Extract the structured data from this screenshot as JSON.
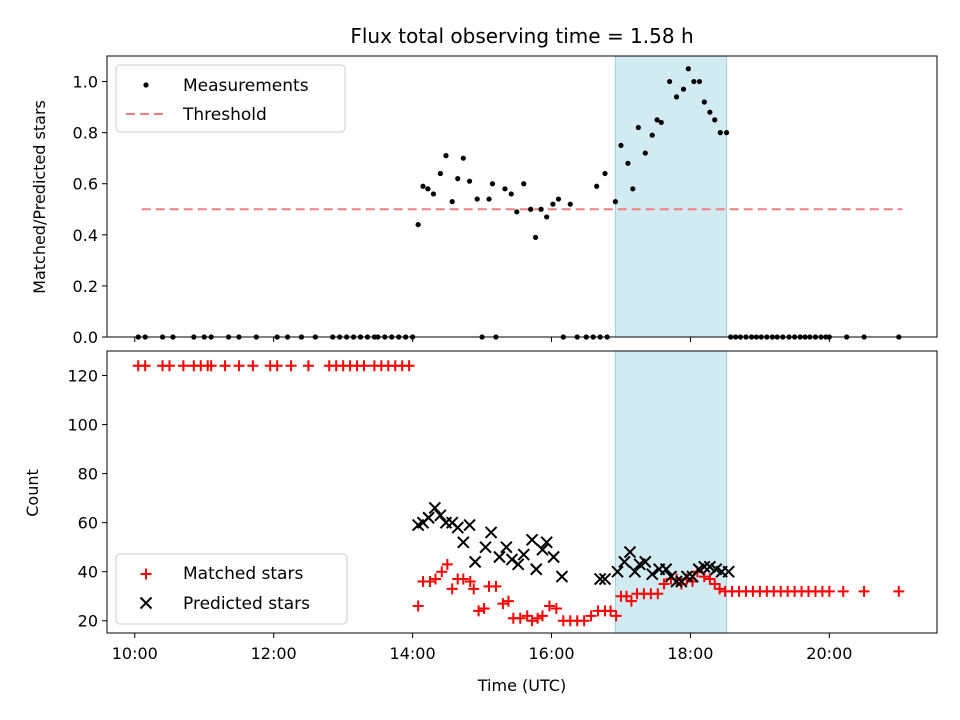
{
  "chart_data": {
    "type": "scatter",
    "title": "Flux total observing time = 1.58 h",
    "xlabel": "Time (UTC)",
    "x_ticks": [
      "10:00",
      "12:00",
      "14:00",
      "16:00",
      "18:00",
      "20:00"
    ],
    "xlim_hours": [
      9.6,
      21.55
    ],
    "highlight_span_hours": [
      16.92,
      18.52
    ],
    "highlight_color": "#add8e6",
    "panels": [
      {
        "name": "ratio",
        "ylabel": "Matched/Predicted stars",
        "ylim": [
          0,
          1.1
        ],
        "yticks": [
          "0.0",
          "0.2",
          "0.4",
          "0.6",
          "0.8",
          "1.0"
        ],
        "legend": [
          "Measurements",
          "Threshold"
        ],
        "threshold": {
          "value": 0.5,
          "x_range_hours": [
            10.1,
            21.05
          ],
          "color": "#f08080"
        },
        "measurements": [
          [
            10.05,
            0
          ],
          [
            10.15,
            0
          ],
          [
            10.4,
            0
          ],
          [
            10.55,
            0
          ],
          [
            10.85,
            0
          ],
          [
            11.0,
            0
          ],
          [
            11.1,
            0
          ],
          [
            11.35,
            0
          ],
          [
            11.5,
            0
          ],
          [
            11.75,
            0
          ],
          [
            12.05,
            0
          ],
          [
            12.2,
            0
          ],
          [
            12.4,
            0
          ],
          [
            12.6,
            0
          ],
          [
            12.85,
            0
          ],
          [
            12.95,
            0
          ],
          [
            13.05,
            0
          ],
          [
            13.15,
            0
          ],
          [
            13.25,
            0
          ],
          [
            13.35,
            0
          ],
          [
            13.45,
            0
          ],
          [
            13.5,
            0
          ],
          [
            13.6,
            0
          ],
          [
            13.7,
            0
          ],
          [
            13.8,
            0
          ],
          [
            13.9,
            0
          ],
          [
            14.0,
            0
          ],
          [
            14.08,
            0.44
          ],
          [
            14.15,
            0.59
          ],
          [
            14.22,
            0.58
          ],
          [
            14.3,
            0.56
          ],
          [
            14.4,
            0.64
          ],
          [
            14.48,
            0.71
          ],
          [
            14.57,
            0.53
          ],
          [
            14.65,
            0.62
          ],
          [
            14.73,
            0.7
          ],
          [
            14.82,
            0.61
          ],
          [
            14.93,
            0.54
          ],
          [
            15.1,
            0.54
          ],
          [
            15.15,
            0.6
          ],
          [
            15.33,
            0.58
          ],
          [
            15.42,
            0.56
          ],
          [
            15.5,
            0.49
          ],
          [
            15.6,
            0.6
          ],
          [
            15.7,
            0.5
          ],
          [
            15.77,
            0.39
          ],
          [
            15.85,
            0.5
          ],
          [
            15.93,
            0.47
          ],
          [
            16.02,
            0.52
          ],
          [
            16.1,
            0.54
          ],
          [
            16.27,
            0.52
          ],
          [
            16.65,
            0.59
          ],
          [
            16.77,
            0.64
          ],
          [
            16.92,
            0.53
          ],
          [
            17.0,
            0.75
          ],
          [
            17.1,
            0.68
          ],
          [
            17.17,
            0.58
          ],
          [
            17.25,
            0.82
          ],
          [
            17.35,
            0.72
          ],
          [
            17.45,
            0.79
          ],
          [
            17.52,
            0.85
          ],
          [
            17.58,
            0.84
          ],
          [
            17.7,
            1.0
          ],
          [
            17.8,
            0.94
          ],
          [
            17.9,
            0.97
          ],
          [
            17.97,
            1.05
          ],
          [
            18.05,
            1.0
          ],
          [
            18.13,
            1.0
          ],
          [
            18.2,
            0.92
          ],
          [
            18.28,
            0.88
          ],
          [
            18.35,
            0.85
          ],
          [
            18.43,
            0.8
          ],
          [
            18.52,
            0.8
          ],
          [
            15.0,
            0
          ],
          [
            15.2,
            0
          ],
          [
            16.17,
            0
          ],
          [
            16.37,
            0
          ],
          [
            16.5,
            0
          ],
          [
            16.6,
            0
          ],
          [
            16.7,
            0
          ],
          [
            16.8,
            0
          ],
          [
            18.58,
            0
          ],
          [
            18.65,
            0
          ],
          [
            18.72,
            0
          ],
          [
            18.8,
            0
          ],
          [
            18.88,
            0
          ],
          [
            18.95,
            0
          ],
          [
            19.02,
            0
          ],
          [
            19.1,
            0
          ],
          [
            19.18,
            0
          ],
          [
            19.25,
            0
          ],
          [
            19.33,
            0
          ],
          [
            19.42,
            0
          ],
          [
            19.5,
            0
          ],
          [
            19.58,
            0
          ],
          [
            19.65,
            0
          ],
          [
            19.72,
            0
          ],
          [
            19.8,
            0
          ],
          [
            19.88,
            0
          ],
          [
            19.95,
            0
          ],
          [
            20.0,
            0
          ],
          [
            20.25,
            0
          ],
          [
            20.5,
            0
          ],
          [
            21.0,
            0
          ]
        ]
      },
      {
        "name": "count",
        "ylabel": "Count",
        "ylim": [
          15,
          130
        ],
        "yticks": [
          "20",
          "40",
          "60",
          "80",
          "100",
          "120"
        ],
        "legend": [
          "Matched stars",
          "Predicted stars"
        ],
        "matched_color": "#ff0000",
        "predicted_color": "#000000",
        "matched": [
          [
            10.05,
            124
          ],
          [
            10.15,
            124
          ],
          [
            10.4,
            124
          ],
          [
            10.5,
            124
          ],
          [
            10.7,
            124
          ],
          [
            10.85,
            124
          ],
          [
            10.95,
            124
          ],
          [
            11.05,
            124
          ],
          [
            11.1,
            124
          ],
          [
            11.3,
            124
          ],
          [
            11.5,
            124
          ],
          [
            11.7,
            124
          ],
          [
            11.95,
            124
          ],
          [
            12.05,
            124
          ],
          [
            12.25,
            124
          ],
          [
            12.5,
            124
          ],
          [
            12.8,
            124
          ],
          [
            12.9,
            124
          ],
          [
            13.0,
            124
          ],
          [
            13.1,
            124
          ],
          [
            13.2,
            124
          ],
          [
            13.3,
            124
          ],
          [
            13.45,
            124
          ],
          [
            13.55,
            124
          ],
          [
            13.65,
            124
          ],
          [
            13.75,
            124
          ],
          [
            13.85,
            124
          ],
          [
            13.95,
            124
          ],
          [
            14.08,
            26
          ],
          [
            14.15,
            36
          ],
          [
            14.25,
            36
          ],
          [
            14.33,
            37
          ],
          [
            14.42,
            40
          ],
          [
            14.5,
            43
          ],
          [
            14.57,
            33
          ],
          [
            14.65,
            37
          ],
          [
            14.73,
            37
          ],
          [
            14.83,
            36
          ],
          [
            14.88,
            33
          ],
          [
            14.95,
            24
          ],
          [
            15.03,
            25
          ],
          [
            15.1,
            34
          ],
          [
            15.2,
            34
          ],
          [
            15.3,
            27
          ],
          [
            15.38,
            28
          ],
          [
            15.45,
            21
          ],
          [
            15.55,
            21
          ],
          [
            15.65,
            22
          ],
          [
            15.72,
            20
          ],
          [
            15.8,
            21
          ],
          [
            15.87,
            22
          ],
          [
            15.97,
            26
          ],
          [
            16.07,
            25
          ],
          [
            16.17,
            20
          ],
          [
            16.27,
            20
          ],
          [
            16.37,
            20
          ],
          [
            16.47,
            20
          ],
          [
            16.57,
            22
          ],
          [
            16.67,
            24
          ],
          [
            16.77,
            24
          ],
          [
            16.85,
            24
          ],
          [
            16.93,
            22
          ],
          [
            17.0,
            30
          ],
          [
            17.08,
            30
          ],
          [
            17.15,
            28
          ],
          [
            17.23,
            31
          ],
          [
            17.33,
            31
          ],
          [
            17.43,
            31
          ],
          [
            17.53,
            31
          ],
          [
            17.62,
            35
          ],
          [
            17.72,
            37
          ],
          [
            17.8,
            37
          ],
          [
            17.87,
            35
          ],
          [
            17.95,
            37
          ],
          [
            18.03,
            36
          ],
          [
            18.1,
            40
          ],
          [
            18.2,
            38
          ],
          [
            18.28,
            37
          ],
          [
            18.35,
            35
          ],
          [
            18.42,
            33
          ],
          [
            18.5,
            32
          ],
          [
            18.6,
            32
          ],
          [
            18.7,
            32
          ],
          [
            18.8,
            32
          ],
          [
            18.9,
            32
          ],
          [
            19.0,
            32
          ],
          [
            19.1,
            32
          ],
          [
            19.2,
            32
          ],
          [
            19.3,
            32
          ],
          [
            19.4,
            32
          ],
          [
            19.5,
            32
          ],
          [
            19.6,
            32
          ],
          [
            19.7,
            32
          ],
          [
            19.8,
            32
          ],
          [
            19.9,
            32
          ],
          [
            20.0,
            32
          ],
          [
            20.2,
            32
          ],
          [
            20.5,
            32
          ],
          [
            21.0,
            32
          ]
        ],
        "predicted": [
          [
            14.08,
            59
          ],
          [
            14.15,
            60
          ],
          [
            14.23,
            62
          ],
          [
            14.32,
            66
          ],
          [
            14.4,
            63
          ],
          [
            14.48,
            60
          ],
          [
            14.57,
            60
          ],
          [
            14.65,
            58
          ],
          [
            14.73,
            52
          ],
          [
            14.82,
            59
          ],
          [
            14.9,
            44
          ],
          [
            15.05,
            50
          ],
          [
            15.13,
            56
          ],
          [
            15.25,
            46
          ],
          [
            15.35,
            50
          ],
          [
            15.43,
            45
          ],
          [
            15.52,
            43
          ],
          [
            15.6,
            47
          ],
          [
            15.72,
            53
          ],
          [
            15.78,
            41
          ],
          [
            15.87,
            49
          ],
          [
            15.93,
            52
          ],
          [
            16.03,
            46
          ],
          [
            16.15,
            38
          ],
          [
            16.7,
            37
          ],
          [
            16.77,
            37
          ],
          [
            16.95,
            40
          ],
          [
            17.05,
            44
          ],
          [
            17.13,
            48
          ],
          [
            17.2,
            40
          ],
          [
            17.27,
            43
          ],
          [
            17.35,
            44
          ],
          [
            17.45,
            39
          ],
          [
            17.55,
            41
          ],
          [
            17.65,
            41
          ],
          [
            17.72,
            38
          ],
          [
            17.8,
            36
          ],
          [
            17.87,
            36
          ],
          [
            17.95,
            38
          ],
          [
            18.03,
            38
          ],
          [
            18.12,
            41
          ],
          [
            18.2,
            42
          ],
          [
            18.28,
            42
          ],
          [
            18.37,
            41
          ],
          [
            18.45,
            40
          ],
          [
            18.55,
            40
          ]
        ]
      }
    ]
  }
}
